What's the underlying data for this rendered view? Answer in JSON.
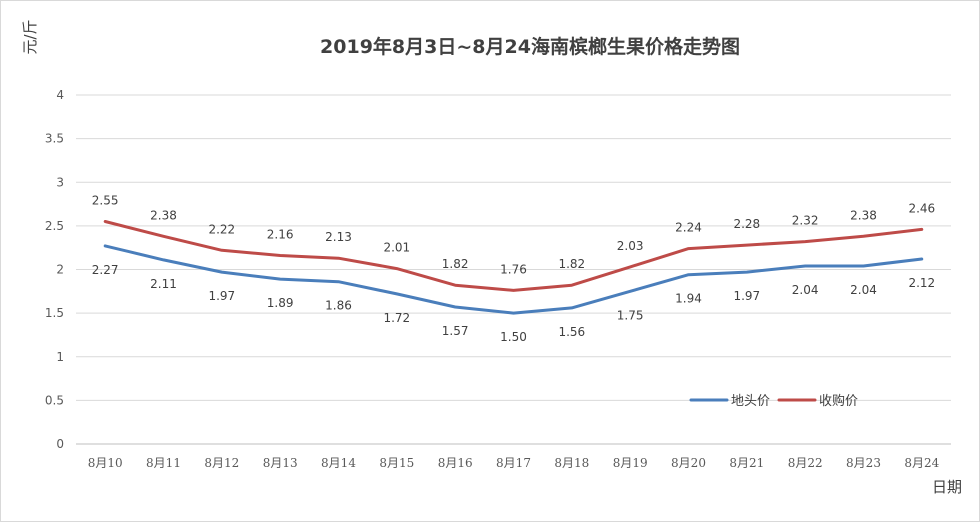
{
  "chart_data": {
    "type": "line",
    "title": "2019年8月3日~8月24海南槟榔生果价格走势图",
    "ylabel": "元/斤",
    "xlabel": "日期",
    "categories": [
      "8月10",
      "8月11",
      "8月12",
      "8月13",
      "8月14",
      "8月15",
      "8月16",
      "8月17",
      "8月18",
      "8月19",
      "8月20",
      "8月21",
      "8月22",
      "8月23",
      "8月24"
    ],
    "ylim": [
      0,
      4
    ],
    "yticks": [
      0,
      0.5,
      1,
      1.5,
      2,
      2.5,
      3,
      3.5,
      4
    ],
    "ytick_labels": [
      "0",
      "0.5",
      "1",
      "1.5",
      "2",
      "2.5",
      "3",
      "3.5",
      "4"
    ],
    "grid": true,
    "legend_position": "bottom-right",
    "series": [
      {
        "name": "地头价",
        "color": "#4a7ebb",
        "values": [
          2.27,
          2.11,
          1.97,
          1.89,
          1.86,
          1.72,
          1.57,
          1.5,
          1.56,
          1.75,
          1.94,
          1.97,
          2.04,
          2.04,
          2.12
        ],
        "labels": [
          "2.27",
          "2.11",
          "1.97",
          "1.89",
          "1.86",
          "1.72",
          "1.57",
          "1.50",
          "1.56",
          "1.75",
          "1.94",
          "1.97",
          "2.04",
          "2.04",
          "2.12"
        ],
        "label_side": "below"
      },
      {
        "name": "收购价",
        "color": "#be4b48",
        "values": [
          2.55,
          2.38,
          2.22,
          2.16,
          2.13,
          2.01,
          1.82,
          1.76,
          1.82,
          2.03,
          2.24,
          2.28,
          2.32,
          2.38,
          2.46
        ],
        "labels": [
          "2.55",
          "2.38",
          "2.22",
          "2.16",
          "2.13",
          "2.01",
          "1.82",
          "1.76",
          "1.82",
          "2.03",
          "2.24",
          "2.28",
          "2.32",
          "2.38",
          "2.46"
        ],
        "label_side": "above"
      }
    ]
  }
}
